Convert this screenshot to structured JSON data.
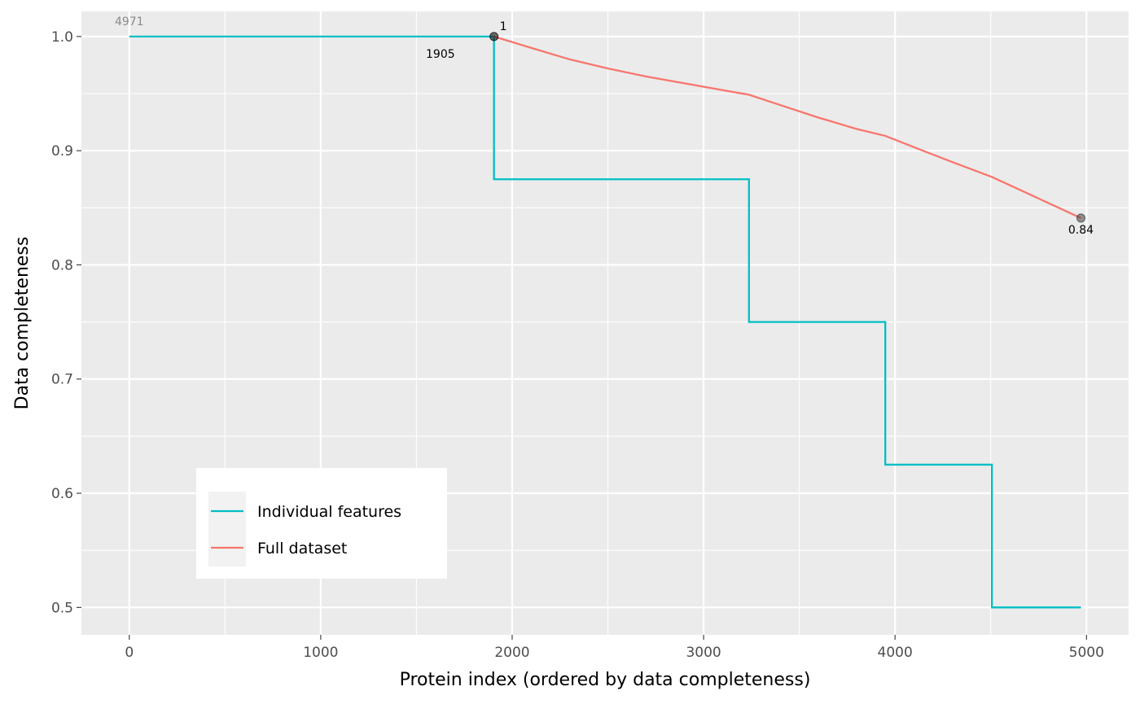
{
  "chart_data": {
    "type": "line",
    "title": "",
    "xlabel": "Protein index (ordered by data completeness)",
    "ylabel": "Data completeness",
    "xlim": [
      -250,
      5220
    ],
    "ylim": [
      0.476,
      1.022
    ],
    "x_ticks": [
      0,
      1000,
      2000,
      3000,
      4000,
      5000
    ],
    "x_tick_labels": [
      "0",
      "1000",
      "2000",
      "3000",
      "4000",
      "5000"
    ],
    "y_ticks": [
      0.5,
      0.6,
      0.7,
      0.8,
      0.9,
      1.0
    ],
    "y_tick_labels": [
      "0.5",
      "0.6",
      "0.7",
      "0.8",
      "0.9",
      "1.0"
    ],
    "grid": true,
    "background": "#ebebeb",
    "legend": {
      "position": "bottom-left",
      "entries": [
        "Individual features",
        "Full dataset"
      ]
    },
    "series": [
      {
        "name": "Individual features",
        "color": "#00bfc4",
        "step": true,
        "x": [
          0,
          1905,
          1905,
          3237,
          3237,
          3949,
          3949,
          4506,
          4506,
          4971
        ],
        "y": [
          1.0,
          1.0,
          0.875,
          0.875,
          0.75,
          0.75,
          0.625,
          0.625,
          0.5,
          0.5
        ]
      },
      {
        "name": "Full dataset",
        "color": "#f8766d",
        "step": false,
        "x": [
          1905,
          2100,
          2300,
          2500,
          2700,
          2900,
          3100,
          3237,
          3400,
          3600,
          3800,
          3949,
          4100,
          4300,
          4506,
          4700,
          4971
        ],
        "y": [
          1.0,
          0.99,
          0.98,
          0.972,
          0.965,
          0.959,
          0.953,
          0.949,
          0.94,
          0.929,
          0.919,
          0.913,
          0.903,
          0.89,
          0.877,
          0.862,
          0.841
        ]
      }
    ],
    "points": [
      {
        "x": 1905,
        "y": 1.0,
        "color": "#000000"
      },
      {
        "x": 4971,
        "y": 0.841,
        "color": "#444444"
      }
    ],
    "annotations": [
      {
        "text": "4971",
        "x": 0,
        "y": 1.0,
        "style": "grey"
      },
      {
        "text": "1",
        "x": 1905,
        "y": 1.0,
        "style": "black"
      },
      {
        "text": "1905",
        "x": 1905,
        "y": 1.0,
        "style": "black"
      },
      {
        "text": "0.84",
        "x": 4971,
        "y": 0.841,
        "style": "black"
      }
    ]
  }
}
